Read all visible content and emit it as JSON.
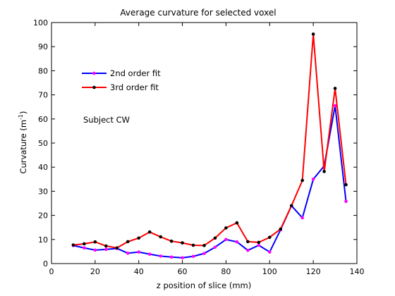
{
  "chart_data": {
    "type": "line",
    "title": "Average curvature for selected voxel",
    "xlabel": "z position of slice (mm)",
    "ylabel": "Curvature (m",
    "ylabel_sup": "-1",
    "ylabel_close": ")",
    "xlim": [
      0,
      140
    ],
    "ylim": [
      0,
      100
    ],
    "xticks": [
      0,
      20,
      40,
      60,
      80,
      100,
      120,
      140
    ],
    "yticks": [
      0,
      10,
      20,
      30,
      40,
      50,
      60,
      70,
      80,
      90,
      100
    ],
    "grid": false,
    "legend_position": "upper-left",
    "annotation": "Subject CW",
    "x": [
      10,
      15,
      20,
      25,
      30,
      35,
      40,
      45,
      50,
      55,
      60,
      65,
      70,
      75,
      80,
      85,
      90,
      95,
      100,
      105,
      110,
      115,
      120,
      125,
      130,
      135
    ],
    "series": [
      {
        "name": "2nd order fit",
        "line_color": "#0000ff",
        "marker_color": "#ff00ff",
        "values": [
          7.5,
          6.5,
          5.6,
          5.9,
          6.3,
          4.3,
          4.8,
          3.9,
          3.1,
          2.7,
          2.4,
          3.0,
          4.2,
          6.8,
          10.0,
          9.0,
          5.5,
          7.6,
          4.8,
          14.0,
          24.0,
          19.0,
          35.0,
          40.5,
          65.5,
          25.8
        ]
      },
      {
        "name": "3rd order fit",
        "line_color": "#ff0000",
        "marker_color": "#000000",
        "values": [
          7.7,
          8.2,
          9.0,
          7.3,
          6.5,
          9.1,
          10.6,
          13.1,
          11.1,
          9.3,
          8.6,
          7.6,
          7.5,
          10.6,
          14.8,
          16.9,
          9.1,
          8.8,
          10.9,
          14.3,
          24.0,
          34.5,
          95.2,
          38.2,
          72.7,
          32.7
        ]
      }
    ]
  }
}
